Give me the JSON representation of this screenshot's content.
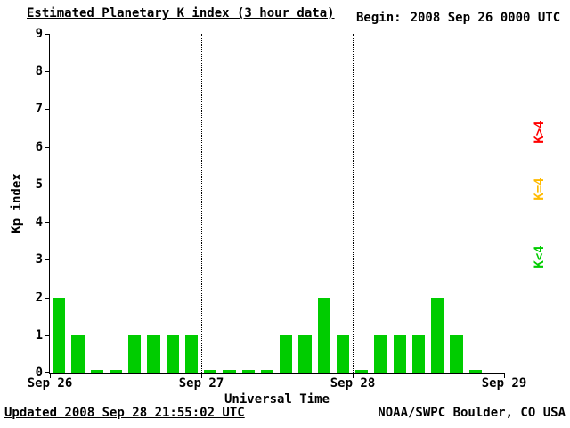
{
  "header": {
    "title": "Estimated Planetary K index (3 hour data)",
    "begin_label": "Begin:",
    "begin_value": "2008 Sep 26 0000 UTC"
  },
  "footer": {
    "updated": "Updated 2008 Sep 28 21:55:02 UTC",
    "source": "NOAA/SWPC Boulder, CO USA"
  },
  "legend": [
    {
      "label": "K>4",
      "color": "#ff0000"
    },
    {
      "label": "K=4",
      "color": "#ffbb00"
    },
    {
      "label": "K<4",
      "color": "#00cc00"
    }
  ],
  "colors": {
    "bar_low": "#00cc00",
    "bar_mid": "#ffbb00",
    "bar_high": "#ff0000",
    "axis": "#000000",
    "background": "#ffffff"
  },
  "chart_data": {
    "type": "bar",
    "title": "Estimated Planetary K index (3 hour data)",
    "xlabel": "Universal Time",
    "ylabel": "Kp index",
    "ylim": [
      0,
      9
    ],
    "y_ticks": [
      0,
      1,
      2,
      3,
      4,
      5,
      6,
      7,
      8,
      9
    ],
    "x_ticks": [
      "Sep 26",
      "Sep 27",
      "Sep 28",
      "Sep 29"
    ],
    "interval_hours": 3,
    "values": [
      2,
      1,
      0,
      0,
      1,
      1,
      1,
      1,
      0,
      0,
      0,
      0,
      1,
      1,
      2,
      1,
      0,
      1,
      1,
      1,
      2,
      1,
      0,
      null
    ],
    "color_rule": "green when K under 4, yellow when K equals 4, red when K over 4",
    "grid": "off",
    "day_boundary_lines": "dotted",
    "legend_position": "right"
  }
}
